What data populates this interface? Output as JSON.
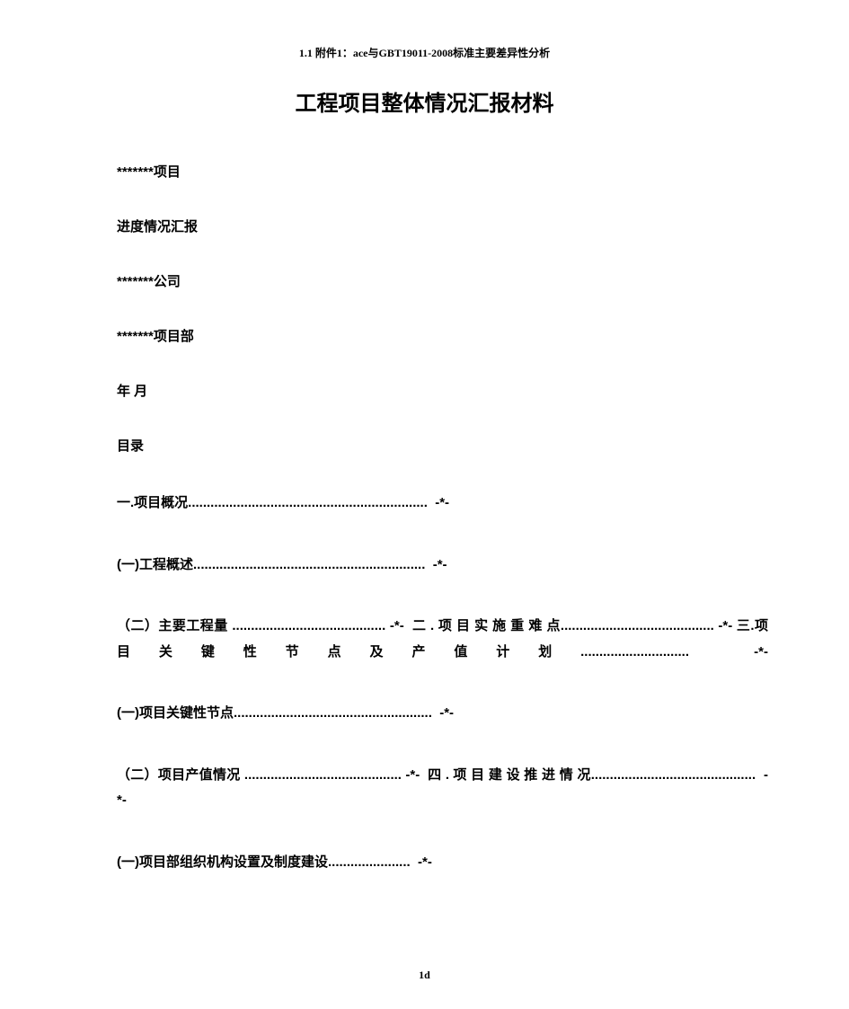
{
  "header": {
    "text": "1.1 附件1：ace与GBT19011-2008标准主要差异性分析"
  },
  "title": "工程项目整体情况汇报材料",
  "meta": {
    "project": "*******项目",
    "report_type": "进度情况汇报",
    "company": "*******公司",
    "department": "*******项目部",
    "date": "年 月",
    "toc_label": "目录"
  },
  "toc": {
    "line1": "一.项目概况................................................................  -*-",
    "line2": "(一)工程概述..............................................................  -*-",
    "line3": "（二）主要工程量 ......................................... -*-  二 . 项 目 实 施 重 难 点......................................... -*- 三.项目关键性节点及产值计划.............................  -*-",
    "line4": "(一)项目关键性节点.....................................................  -*-",
    "line5": "（二）项目产值情况 .......................................... -*-  四 . 项 目 建 设 推 进 情 况............................................  -*-",
    "line6": "(一)项目部组织机构设置及制度建设......................  -*-"
  },
  "page_number": "1d",
  "colors": {
    "text": "#000000",
    "background": "#ffffff"
  }
}
